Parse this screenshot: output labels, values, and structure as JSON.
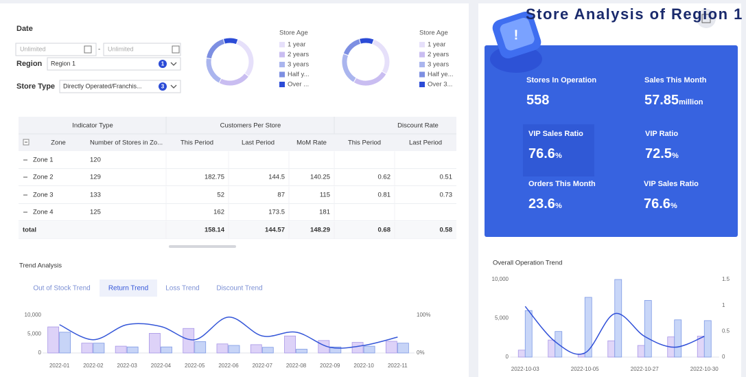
{
  "header": {
    "title": "Store Analysis of Region 1"
  },
  "filters": {
    "date_label": "Date",
    "date_start_placeholder": "Unlimited",
    "date_separator": "-",
    "date_end_placeholder": "Unlimited",
    "region_label": "Region",
    "region_value": "Region 1",
    "region_count": 1,
    "store_type_label": "Store Type",
    "store_type_value": "Directly Operated/Franchis...",
    "store_type_count": 3
  },
  "table": {
    "group_headers": [
      "Indicator Type",
      "Customers Per Store",
      "Discount Rate"
    ],
    "columns": [
      "Zone",
      "Number of Stores in Zo...",
      "This Period",
      "Last Period",
      "MoM Rate",
      "This Period",
      "Last Period"
    ],
    "rows": [
      [
        "Zone 1",
        120,
        null,
        null,
        null,
        null,
        null
      ],
      [
        "Zone 2",
        129,
        182.75,
        144.5,
        140.25,
        0.62,
        0.51
      ],
      [
        "Zone 3",
        133,
        52,
        87,
        115,
        0.81,
        0.73
      ],
      [
        "Zone 4",
        125,
        162,
        173.5,
        181,
        null,
        null
      ],
      [
        "total",
        null,
        158.14,
        144.57,
        148.29,
        0.68,
        0.58
      ]
    ]
  },
  "trend": {
    "title": "Trend Analysis",
    "tabs": [
      "Out of Stock Trend",
      "Return Trend",
      "Loss Trend",
      "Discount Trend"
    ],
    "active_tab": 1
  },
  "overall": {
    "title": "Overall Operation Trend"
  },
  "kpis": [
    {
      "label": "Stores In Operation",
      "value": "558",
      "unit": null
    },
    {
      "label": "Sales This Month",
      "value": "57.85",
      "unit": "million"
    },
    {
      "label": "VIP Sales Ratio",
      "value": "76.6",
      "unit": "%"
    },
    {
      "label": "VIP Ratio",
      "value": "72.5",
      "unit": "%"
    },
    {
      "label": "Orders This Month",
      "value": "23.6",
      "unit": "%"
    },
    {
      "label": "VIP Sales Ratio",
      "value": "76.6",
      "unit": "%"
    }
  ],
  "chart_data": [
    {
      "type": "donut",
      "legend_title": "Store Age",
      "categories": [
        "1 year",
        "2 years",
        "3 years",
        "Half y...",
        "Over ..."
      ],
      "values": [
        30,
        22,
        20,
        18,
        10
      ],
      "colors": [
        "#e6e0fa",
        "#c9bdf1",
        "#aab5ee",
        "#7d8fe2",
        "#2b4bd6"
      ]
    },
    {
      "type": "donut",
      "legend_title": "Store Age",
      "categories": [
        "1 year",
        "2 years",
        "3 years",
        "Half ye...",
        "Over 3..."
      ],
      "values": [
        28,
        25,
        22,
        15,
        10
      ],
      "colors": [
        "#e6e0fa",
        "#c9bdf1",
        "#aab5ee",
        "#7d8fe2",
        "#2b4bd6"
      ]
    },
    {
      "type": "bar",
      "categories": [
        "2022-01",
        "2022-02",
        "2022-03",
        "2022-04",
        "2022-05",
        "2022-06",
        "2022-07",
        "2022-08",
        "2022-09",
        "2022-10",
        "2022-11"
      ],
      "series": [
        {
          "type": "bar",
          "color": "#ddd2f8",
          "values": [
            6900,
            2600,
            1800,
            5200,
            6500,
            2400,
            2200,
            4500,
            3300,
            2800,
            3100
          ]
        },
        {
          "type": "bar",
          "color": "#c7d4f7",
          "values": [
            5500,
            2600,
            1600,
            1600,
            3000,
            2000,
            1500,
            1000,
            1600,
            1800,
            2600
          ]
        },
        {
          "type": "line",
          "color": "#3456d8",
          "axis": "y2",
          "values": [
            75,
            35,
            75,
            70,
            35,
            95,
            45,
            55,
            15,
            20,
            42
          ]
        }
      ],
      "ylim": [
        0,
        10000
      ],
      "yticks": [
        0,
        {
          "value": 5000,
          "label": "5,000"
        },
        {
          "value": 10000,
          "label": "10,000"
        }
      ],
      "y2lim": [
        0,
        100
      ],
      "y2ticks": [
        {
          "value": 0,
          "label": "0%"
        },
        {
          "value": 100,
          "label": "100%"
        }
      ]
    },
    {
      "type": "bar",
      "categories": [
        "2022-10-03",
        null,
        "2022-10-05",
        null,
        "2022-10-27",
        null,
        "2022-10-30"
      ],
      "series": [
        {
          "type": "bar",
          "color": "#e0d6f8",
          "values": [
            900,
            2200,
            400,
            2100,
            1500,
            2600,
            2700
          ]
        },
        {
          "type": "bar",
          "color": "#c8d6f8",
          "values": [
            6000,
            3300,
            7700,
            10000,
            7300,
            4800,
            4700
          ]
        },
        {
          "type": "line",
          "color": "#2f4fd8",
          "axis": "y2",
          "values": [
            0.98,
            0.3,
            0.08,
            0.84,
            0.4,
            0.19,
            0.4
          ]
        }
      ],
      "ylim": [
        0,
        10000
      ],
      "yticks": [
        0,
        {
          "value": 5000,
          "label": "5,000"
        },
        {
          "value": 10000,
          "label": "10,000"
        }
      ],
      "y2lim": [
        0,
        1.5
      ],
      "y2ticks": [
        0,
        0.5,
        1,
        1.5
      ]
    }
  ]
}
